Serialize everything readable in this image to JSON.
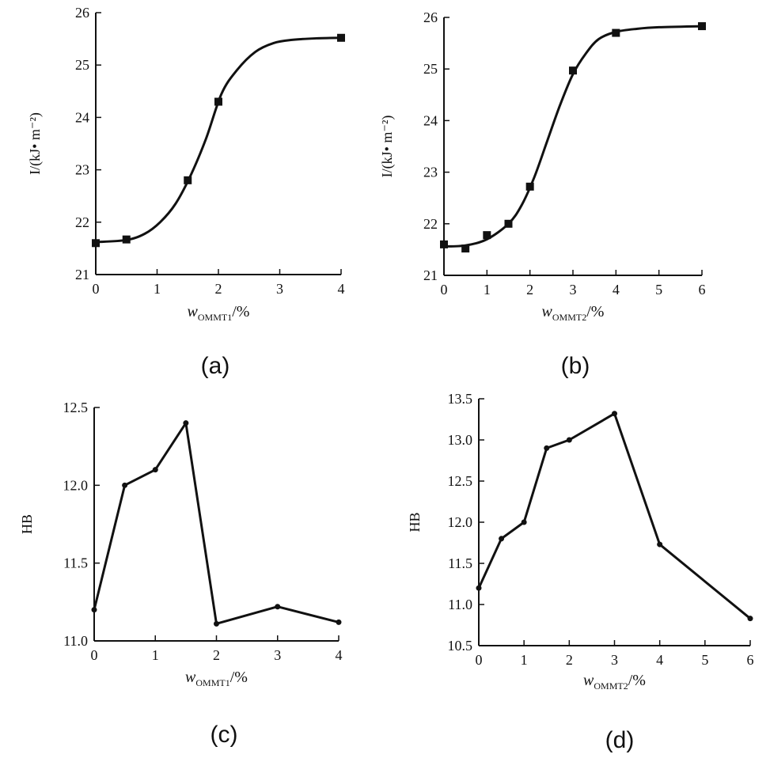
{
  "chart_data": [
    {
      "panel": "(a)",
      "type": "line",
      "xlabel_main": "w",
      "xlabel_sub": "OMMT1",
      "xlabel_tail": "/%",
      "ylabel": "I/(kJ• m⁻²)",
      "xlim": [
        0,
        4
      ],
      "ylim": [
        21,
        26
      ],
      "xticks": [
        0,
        1,
        2,
        3,
        4
      ],
      "yticks": [
        21,
        22,
        23,
        24,
        25,
        26
      ],
      "ytick_labels": [
        "21",
        "22",
        "23",
        "24",
        "25",
        "26"
      ],
      "smooth": true,
      "marker": "square",
      "points": [
        [
          0,
          21.6
        ],
        [
          0.5,
          21.67
        ],
        [
          1.5,
          22.8
        ],
        [
          2,
          24.3
        ],
        [
          4,
          25.52
        ]
      ],
      "curve": [
        [
          0,
          21.62
        ],
        [
          0.5,
          21.66
        ],
        [
          0.8,
          21.78
        ],
        [
          1.05,
          22.0
        ],
        [
          1.3,
          22.35
        ],
        [
          1.55,
          22.9
        ],
        [
          1.8,
          23.6
        ],
        [
          2.05,
          24.45
        ],
        [
          2.3,
          24.9
        ],
        [
          2.6,
          25.25
        ],
        [
          2.9,
          25.42
        ],
        [
          3.2,
          25.48
        ],
        [
          3.6,
          25.51
        ],
        [
          4,
          25.52
        ]
      ]
    },
    {
      "panel": "(b)",
      "type": "line",
      "xlabel_main": "w",
      "xlabel_sub": "OMMT2",
      "xlabel_tail": "/%",
      "ylabel": "I/(kJ• m⁻²)",
      "xlim": [
        0,
        6
      ],
      "ylim": [
        21,
        26
      ],
      "xticks": [
        0,
        1,
        2,
        3,
        4,
        5,
        6
      ],
      "yticks": [
        21,
        22,
        23,
        24,
        25,
        26
      ],
      "ytick_labels": [
        "21",
        "22",
        "23",
        "24",
        "25",
        "26"
      ],
      "smooth": true,
      "marker": "square",
      "points": [
        [
          0,
          21.6
        ],
        [
          0.5,
          21.52
        ],
        [
          1,
          21.78
        ],
        [
          1.5,
          22.0
        ],
        [
          2,
          22.72
        ],
        [
          3,
          24.97
        ],
        [
          4,
          25.7
        ],
        [
          6,
          25.83
        ]
      ],
      "curve": [
        [
          0,
          21.56
        ],
        [
          0.5,
          21.58
        ],
        [
          1,
          21.7
        ],
        [
          1.5,
          22.0
        ],
        [
          1.8,
          22.35
        ],
        [
          2.1,
          22.9
        ],
        [
          2.4,
          23.6
        ],
        [
          2.7,
          24.3
        ],
        [
          3.0,
          24.9
        ],
        [
          3.3,
          25.3
        ],
        [
          3.6,
          25.58
        ],
        [
          4,
          25.72
        ],
        [
          4.5,
          25.78
        ],
        [
          5,
          25.81
        ],
        [
          6,
          25.83
        ]
      ]
    },
    {
      "panel": "(c)",
      "type": "line",
      "xlabel_main": "w",
      "xlabel_sub": "OMMT1",
      "xlabel_tail": "/%",
      "ylabel": "HB",
      "xlim": [
        0,
        4
      ],
      "ylim": [
        11.0,
        12.5
      ],
      "xticks": [
        0,
        1,
        2,
        3,
        4
      ],
      "yticks": [
        11.0,
        11.5,
        12.0,
        12.5
      ],
      "ytick_labels": [
        "11.0",
        "11.5",
        "12.0",
        "12.5"
      ],
      "smooth": false,
      "marker": "dot",
      "points": [
        [
          0,
          11.2
        ],
        [
          0.5,
          12.0
        ],
        [
          1,
          12.1
        ],
        [
          1.5,
          12.4
        ],
        [
          2,
          11.11
        ],
        [
          3,
          11.22
        ],
        [
          4,
          11.12
        ]
      ]
    },
    {
      "panel": "(d)",
      "type": "line",
      "xlabel_main": "w",
      "xlabel_sub": "OMMT2",
      "xlabel_tail": "/%",
      "ylabel": "HB",
      "xlim": [
        0,
        6
      ],
      "ylim": [
        10.5,
        13.5
      ],
      "xticks": [
        0,
        1,
        2,
        3,
        4,
        5,
        6
      ],
      "yticks": [
        10.5,
        11.0,
        11.5,
        12.0,
        12.5,
        13.0,
        13.5
      ],
      "ytick_labels": [
        "10.5",
        "11.0",
        "11.5",
        "12.0",
        "12.5",
        "13.0",
        "13.5"
      ],
      "smooth": false,
      "marker": "dot",
      "points": [
        [
          0,
          11.2
        ],
        [
          0.5,
          11.8
        ],
        [
          1,
          12.0
        ],
        [
          1.5,
          12.9
        ],
        [
          2,
          13.0
        ],
        [
          3,
          13.32
        ],
        [
          4,
          11.73
        ],
        [
          6,
          10.83
        ]
      ]
    }
  ]
}
